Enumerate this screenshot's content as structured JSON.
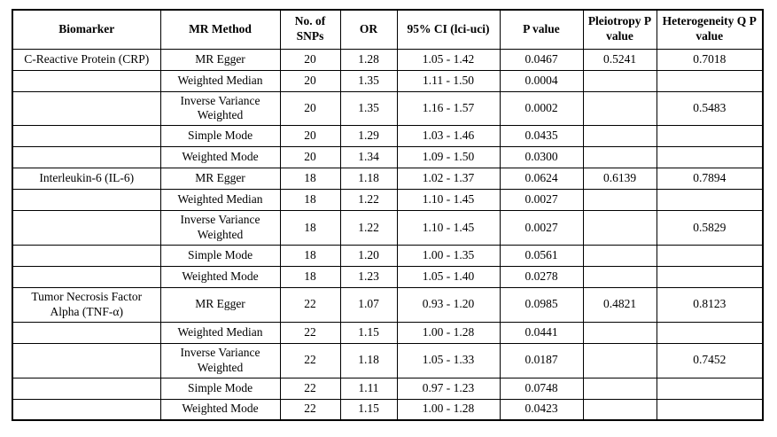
{
  "colors": {
    "border": "#000000",
    "text": "#000000",
    "background": "#ffffff"
  },
  "table": {
    "columns": [
      {
        "id": "biomarker",
        "label": "Biomarker"
      },
      {
        "id": "mr-method",
        "label": "MR Method"
      },
      {
        "id": "no-of-snps",
        "label": "No. of SNPs"
      },
      {
        "id": "or",
        "label": "OR"
      },
      {
        "id": "ci",
        "label": "95% CI (lci-uci)"
      },
      {
        "id": "p-value",
        "label": "P value"
      },
      {
        "id": "pleiotropy-p-value",
        "label": "Pleiotropy P value"
      },
      {
        "id": "heterogeneity-q-p-value",
        "label": "Heterogeneity Q P value"
      }
    ],
    "rows": [
      [
        "C-Reactive Protein (CRP)",
        "MR Egger",
        "20",
        "1.28",
        "1.05 - 1.42",
        "0.0467",
        "0.5241",
        "0.7018"
      ],
      [
        "",
        "Weighted Median",
        "20",
        "1.35",
        "1.11 - 1.50",
        "0.0004",
        "",
        ""
      ],
      [
        "",
        "Inverse Variance Weighted",
        "20",
        "1.35",
        "1.16 - 1.57",
        "0.0002",
        "",
        "0.5483"
      ],
      [
        "",
        "Simple Mode",
        "20",
        "1.29",
        "1.03 - 1.46",
        "0.0435",
        "",
        ""
      ],
      [
        "",
        "Weighted Mode",
        "20",
        "1.34",
        "1.09 - 1.50",
        "0.0300",
        "",
        ""
      ],
      [
        "Interleukin-6 (IL-6)",
        "MR Egger",
        "18",
        "1.18",
        "1.02 - 1.37",
        "0.0624",
        "0.6139",
        "0.7894"
      ],
      [
        "",
        "Weighted Median",
        "18",
        "1.22",
        "1.10 - 1.45",
        "0.0027",
        "",
        ""
      ],
      [
        "",
        "Inverse Variance Weighted",
        "18",
        "1.22",
        "1.10 - 1.45",
        "0.0027",
        "",
        "0.5829"
      ],
      [
        "",
        "Simple Mode",
        "18",
        "1.20",
        "1.00 - 1.35",
        "0.0561",
        "",
        ""
      ],
      [
        "",
        "Weighted Mode",
        "18",
        "1.23",
        "1.05 - 1.40",
        "0.0278",
        "",
        ""
      ],
      [
        "Tumor Necrosis Factor Alpha (TNF-α)",
        "MR Egger",
        "22",
        "1.07",
        "0.93 - 1.20",
        "0.0985",
        "0.4821",
        "0.8123"
      ],
      [
        "",
        "Weighted Median",
        "22",
        "1.15",
        "1.00 - 1.28",
        "0.0441",
        "",
        ""
      ],
      [
        "",
        "Inverse Variance Weighted",
        "22",
        "1.18",
        "1.05 - 1.33",
        "0.0187",
        "",
        "0.7452"
      ],
      [
        "",
        "Simple Mode",
        "22",
        "1.11",
        "0.97 - 1.23",
        "0.0748",
        "",
        ""
      ],
      [
        "",
        "Weighted Mode",
        "22",
        "1.15",
        "1.00 - 1.28",
        "0.0423",
        "",
        ""
      ]
    ]
  }
}
